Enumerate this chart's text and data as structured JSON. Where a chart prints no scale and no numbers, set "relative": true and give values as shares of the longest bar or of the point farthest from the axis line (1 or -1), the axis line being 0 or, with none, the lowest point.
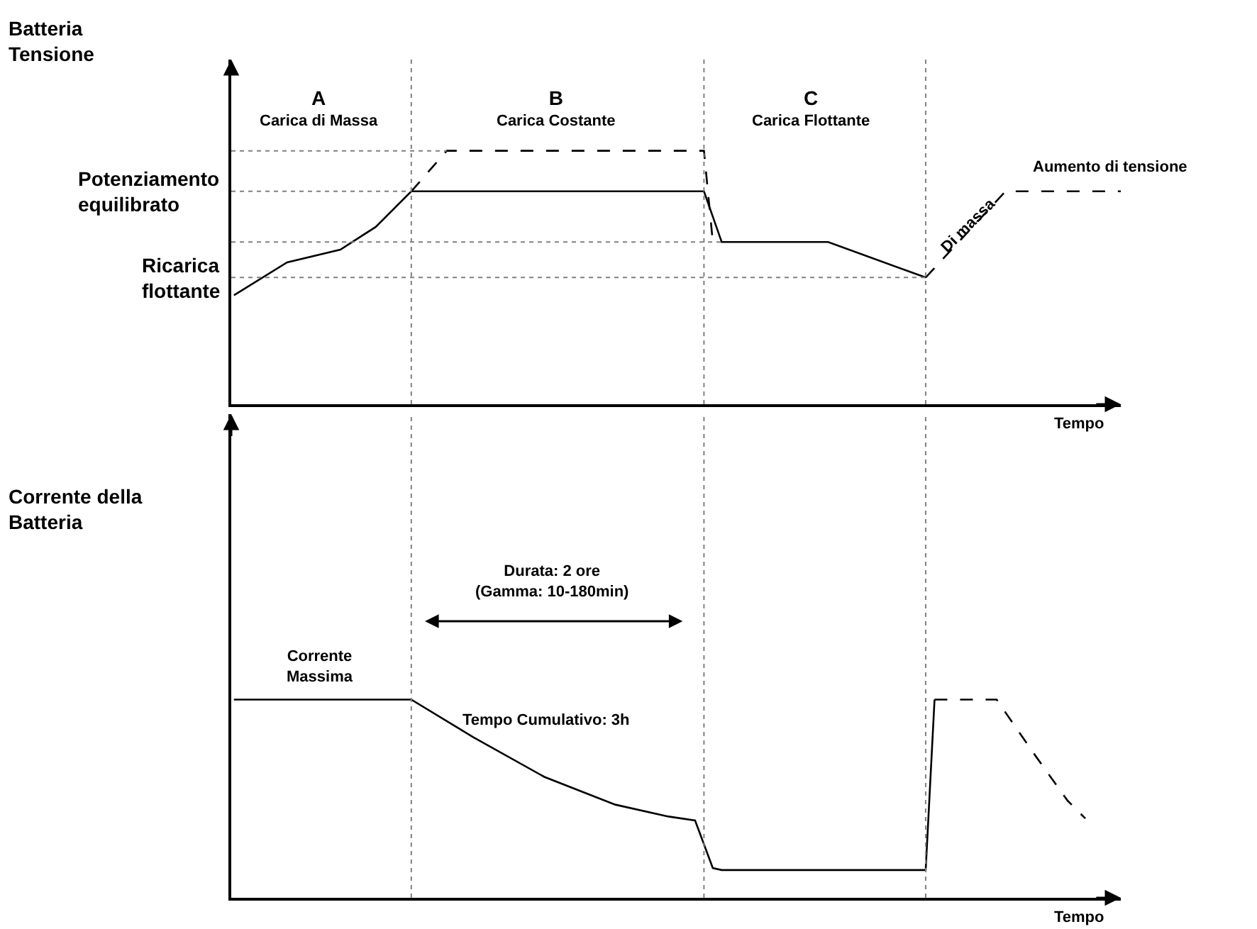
{
  "chart_data": [
    {
      "type": "line",
      "relative": true,
      "ylabel": "Batteria\nTensione",
      "xlabel": "Tempo",
      "marker": "none",
      "grid": "x",
      "categories": [
        null,
        null,
        null,
        null,
        null,
        null,
        null,
        null,
        null,
        null,
        null,
        null,
        null,
        null,
        null,
        null,
        null,
        null,
        null,
        null,
        null,
        null,
        null,
        null,
        null,
        null,
        null,
        null,
        null,
        null,
        null,
        null,
        null,
        null,
        null,
        null,
        null,
        null,
        null,
        null,
        null,
        null,
        null,
        null,
        null,
        null,
        null,
        null,
        null,
        null,
        null,
        null,
        null,
        null,
        null,
        null,
        null,
        null,
        null,
        null,
        null,
        null,
        null,
        null,
        null,
        null,
        null,
        null,
        null,
        null,
        null,
        null,
        null,
        null,
        null,
        null,
        null,
        null,
        null,
        null,
        null,
        null,
        null,
        null,
        null,
        null,
        null,
        null,
        null,
        null,
        null,
        null,
        null,
        null,
        null,
        null,
        null,
        null,
        null,
        null,
        null
      ],
      "series": [
        {
          "color": "#000000",
          "line_style": "solid",
          "values": [
            0.43,
            null,
            null,
            null,
            null,
            null,
            0.56,
            null,
            null,
            null,
            null,
            null,
            0.61,
            null,
            null,
            null,
            0.7,
            null,
            null,
            null,
            0.84,
            null,
            null,
            null,
            null,
            null,
            null,
            null,
            null,
            null,
            null,
            null,
            null,
            null,
            null,
            null,
            null,
            null,
            null,
            null,
            null,
            null,
            null,
            null,
            null,
            null,
            null,
            null,
            null,
            null,
            null,
            null,
            null,
            0.84,
            null,
            0.64,
            null,
            null,
            null,
            null,
            null,
            null,
            null,
            null,
            null,
            null,
            null,
            0.64,
            null,
            null,
            null,
            null,
            null,
            null,
            null,
            null,
            null,
            null,
            0.5,
            null,
            null,
            null,
            null,
            null,
            null,
            null,
            null,
            null,
            null,
            null,
            null,
            null,
            null,
            null,
            null,
            null,
            null,
            null,
            null,
            null,
            null
          ]
        },
        {
          "color": "#000000",
          "line_style": "dashed",
          "values": [
            null,
            null,
            null,
            null,
            null,
            null,
            null,
            null,
            null,
            null,
            null,
            null,
            null,
            null,
            null,
            null,
            null,
            null,
            null,
            null,
            0.84,
            null,
            null,
            null,
            1.0,
            null,
            null,
            null,
            null,
            null,
            null,
            null,
            null,
            null,
            null,
            null,
            null,
            null,
            null,
            null,
            null,
            null,
            null,
            null,
            null,
            null,
            null,
            null,
            null,
            null,
            null,
            null,
            null,
            1.0,
            0.64,
            null,
            null,
            null,
            null,
            null,
            null,
            null,
            null,
            null,
            null,
            null,
            null,
            null,
            null,
            null,
            null,
            null,
            null,
            null,
            null,
            null,
            null,
            null,
            null,
            null,
            null,
            null,
            null,
            null,
            null,
            null,
            null,
            null,
            null,
            null,
            null,
            null,
            null,
            null,
            null,
            null,
            null,
            null,
            null,
            null,
            null
          ]
        },
        {
          "color": "#000000",
          "line_style": "dashed",
          "values": [
            null,
            null,
            null,
            null,
            null,
            null,
            null,
            null,
            null,
            null,
            null,
            null,
            null,
            null,
            null,
            null,
            null,
            null,
            null,
            null,
            null,
            null,
            null,
            null,
            null,
            null,
            null,
            null,
            null,
            null,
            null,
            null,
            null,
            null,
            null,
            null,
            null,
            null,
            null,
            null,
            null,
            null,
            null,
            null,
            null,
            null,
            null,
            null,
            null,
            null,
            null,
            null,
            null,
            null,
            null,
            null,
            null,
            null,
            null,
            null,
            null,
            null,
            null,
            null,
            null,
            null,
            null,
            null,
            null,
            null,
            null,
            null,
            null,
            null,
            null,
            null,
            null,
            null,
            0.5,
            null,
            null,
            null,
            null,
            null,
            null,
            null,
            null,
            0.84,
            null,
            null,
            null,
            null,
            null,
            null,
            null,
            null,
            null,
            null,
            null,
            null,
            0.84
          ]
        }
      ],
      "ref_lines": [
        {
          "axis": "y",
          "value": 1.0,
          "label": null,
          "color": "#808080",
          "line_style": "dotted"
        },
        {
          "axis": "y",
          "value": 0.84,
          "label": "Potenziamento\nequilibrato",
          "color": "#808080",
          "line_style": "dotted"
        },
        {
          "axis": "y",
          "value": 0.64,
          "label": null,
          "color": "#808080",
          "line_style": "dotted"
        },
        {
          "axis": "y",
          "value": 0.5,
          "label": "Ricarica\nflottante",
          "color": "#808080",
          "line_style": "dotted"
        }
      ],
      "annotations": [
        "A\nCarica di Massa",
        "B\nCarica Costante",
        "C\nCarica Flottante",
        "Di massa",
        "Aumento di tensione"
      ]
    },
    {
      "type": "line",
      "relative": true,
      "ylabel": "Corrente della\nBatteria",
      "xlabel": "Tempo",
      "marker": "none",
      "grid": "x",
      "categories": [
        null,
        null,
        null,
        null,
        null,
        null,
        null,
        null,
        null,
        null,
        null,
        null,
        null,
        null,
        null,
        null,
        null,
        null,
        null,
        null,
        null,
        null,
        null,
        null,
        null,
        null,
        null,
        null,
        null,
        null,
        null,
        null,
        null,
        null,
        null,
        null,
        null,
        null,
        null,
        null,
        null,
        null,
        null,
        null,
        null,
        null,
        null,
        null,
        null,
        null,
        null,
        null,
        null,
        null,
        null,
        null,
        null,
        null,
        null,
        null,
        null,
        null,
        null,
        null,
        null,
        null,
        null,
        null,
        null,
        null,
        null,
        null,
        null,
        null,
        null,
        null,
        null,
        null,
        null,
        null,
        null,
        null,
        null,
        null,
        null,
        null,
        null,
        null,
        null,
        null,
        null,
        null,
        null,
        null,
        null,
        null,
        null,
        null,
        null,
        null,
        null
      ],
      "series": [
        {
          "color": "#000000",
          "line_style": "solid",
          "values": [
            1.0,
            null,
            null,
            null,
            null,
            null,
            null,
            null,
            null,
            null,
            null,
            null,
            null,
            null,
            null,
            null,
            null,
            null,
            null,
            null,
            1.0,
            null,
            null,
            null,
            null,
            null,
            null,
            0.81,
            null,
            null,
            null,
            null,
            null,
            null,
            null,
            0.61,
            null,
            null,
            null,
            null,
            null,
            null,
            null,
            0.47,
            null,
            null,
            null,
            null,
            null,
            0.41,
            null,
            null,
            0.39,
            null,
            0.15,
            0.14,
            null,
            null,
            null,
            null,
            null,
            null,
            null,
            null,
            null,
            null,
            null,
            null,
            null,
            null,
            null,
            null,
            null,
            null,
            null,
            null,
            null,
            null,
            0.14,
            1.0,
            null,
            null,
            null,
            null,
            null,
            null,
            null,
            null,
            null,
            null,
            null,
            null,
            null,
            null,
            null,
            null,
            null,
            null,
            null,
            null,
            null
          ]
        },
        {
          "color": "#000000",
          "line_style": "dashed",
          "values": [
            null,
            null,
            null,
            null,
            null,
            null,
            null,
            null,
            null,
            null,
            null,
            null,
            null,
            null,
            null,
            null,
            null,
            null,
            null,
            null,
            null,
            null,
            null,
            null,
            null,
            null,
            null,
            null,
            null,
            null,
            null,
            null,
            null,
            null,
            null,
            null,
            null,
            null,
            null,
            null,
            null,
            null,
            null,
            null,
            null,
            null,
            null,
            null,
            null,
            null,
            null,
            null,
            null,
            null,
            null,
            null,
            null,
            null,
            null,
            null,
            null,
            null,
            null,
            null,
            null,
            null,
            null,
            null,
            null,
            null,
            null,
            null,
            null,
            null,
            null,
            null,
            null,
            null,
            null,
            1.0,
            null,
            null,
            null,
            null,
            null,
            null,
            1.0,
            null,
            null,
            null,
            0.74,
            null,
            null,
            null,
            0.49,
            null,
            0.4,
            null,
            null,
            null,
            null
          ]
        }
      ],
      "annotations": [
        "Corrente\nMassima",
        "Durata: 2 ore\n(Gamma: 10-180min)",
        "Tempo Cumulativo: 3h"
      ]
    }
  ]
}
